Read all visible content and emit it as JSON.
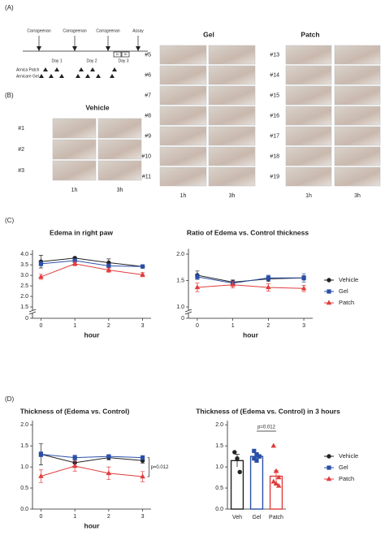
{
  "panels": {
    "a": "(A)",
    "b": "(B)",
    "c": "(C)",
    "d": "(D)"
  },
  "timeline": {
    "events": [
      "Carrageenan",
      "Carrageenan",
      "Carrageenan",
      "Assay"
    ],
    "days": [
      "Day 1",
      "Day 2",
      "Day 3"
    ],
    "hours": [
      "1h",
      "3h"
    ],
    "treatments": [
      "Arnica Patch",
      "Arnicare Gel"
    ]
  },
  "photos": {
    "groups": [
      {
        "title": "Vehicle",
        "labels": [
          "#1",
          "#2",
          "#3"
        ]
      },
      {
        "title": "Gel",
        "labels": [
          "#5",
          "#6",
          "#7",
          "#8",
          "#9",
          "#10",
          "#11"
        ]
      },
      {
        "title": "Patch",
        "labels": [
          "#13",
          "#14",
          "#15",
          "#16",
          "#17",
          "#18",
          "#19"
        ]
      }
    ],
    "times": [
      "1h",
      "3h"
    ]
  },
  "chart_data": [
    {
      "type": "line",
      "title": "Edema in right paw",
      "x": [
        0,
        1,
        2,
        3
      ],
      "xlabel": "hour",
      "xlim": [
        -0.25,
        3.25
      ],
      "xticks": [
        0,
        1,
        2,
        3
      ],
      "ylim": [
        1.5,
        4.2
      ],
      "yticks": [
        1.5,
        {
          "value": 2,
          "label": "2.0"
        },
        2.5,
        {
          "value": 3,
          "label": "3.0"
        },
        3.5,
        {
          "value": 4,
          "label": "4.0"
        }
      ],
      "axis_break_tick": 0,
      "series": [
        {
          "name": "Vehicle",
          "color": "#222222",
          "marker": "circle",
          "values": [
            3.65,
            3.82,
            3.6,
            3.42
          ],
          "errors": [
            0.3,
            0.06,
            0.18,
            0.05
          ]
        },
        {
          "name": "Gel",
          "color": "#2a4fa8",
          "marker": "square",
          "values": [
            3.55,
            3.7,
            3.45,
            3.42
          ],
          "errors": [
            0.1,
            0.08,
            0.1,
            0.05
          ]
        },
        {
          "name": "Patch",
          "color": "#e03c3c",
          "marker": "triangle",
          "values": [
            2.93,
            3.55,
            3.25,
            3.03
          ],
          "errors": [
            0.12,
            0.1,
            0.1,
            0.1
          ]
        }
      ]
    },
    {
      "type": "line",
      "title": "Ratio of Edema vs. Control thickness",
      "x": [
        0,
        1,
        2,
        3
      ],
      "xlabel": "hour",
      "xlim": [
        -0.25,
        3.25
      ],
      "xticks": [
        0,
        1,
        2,
        3
      ],
      "ylim": [
        1.0,
        2.1
      ],
      "yticks": [
        {
          "value": 1,
          "label": "1.0"
        },
        1.5,
        {
          "value": 2,
          "label": "2.0"
        }
      ],
      "axis_break_tick": 0,
      "legend": "right",
      "series": [
        {
          "name": "Vehicle",
          "color": "#222222",
          "marker": "circle",
          "values": [
            1.6,
            1.47,
            1.53,
            1.55
          ],
          "errors": [
            0.08,
            0.04,
            0.05,
            0.04
          ]
        },
        {
          "name": "Gel",
          "color": "#2a4fa8",
          "marker": "square",
          "values": [
            1.57,
            1.45,
            1.55,
            1.55
          ],
          "errors": [
            0.05,
            0.04,
            0.05,
            0.08
          ]
        },
        {
          "name": "Patch",
          "color": "#e03c3c",
          "marker": "triangle",
          "values": [
            1.37,
            1.42,
            1.37,
            1.35
          ],
          "errors": [
            0.08,
            0.06,
            0.07,
            0.06
          ]
        }
      ]
    },
    {
      "type": "line",
      "title": "Thickness of (Edema vs. Control)",
      "x": [
        0,
        1,
        2,
        3
      ],
      "xlabel": "hour",
      "xlim": [
        -0.25,
        3.25
      ],
      "xticks": [
        0,
        1,
        2,
        3
      ],
      "ylim": [
        0,
        2.1
      ],
      "yticks": [
        {
          "value": 0,
          "label": "0.0"
        },
        0.5,
        {
          "value": 1,
          "label": "1.0"
        },
        1.5,
        {
          "value": 2,
          "label": "2.0"
        }
      ],
      "annotation": "p=0.012",
      "series": [
        {
          "name": "Vehicle",
          "color": "#222222",
          "marker": "circle",
          "values": [
            1.3,
            1.1,
            1.22,
            1.15
          ],
          "errors": [
            0.25,
            0.08,
            0.05,
            0.06
          ]
        },
        {
          "name": "Gel",
          "color": "#2a4fa8",
          "marker": "square",
          "values": [
            1.3,
            1.22,
            1.25,
            1.22
          ],
          "errors": [
            0.06,
            0.06,
            0.04,
            0.05
          ]
        },
        {
          "name": "Patch",
          "color": "#e03c3c",
          "marker": "triangle",
          "values": [
            0.78,
            1.02,
            0.85,
            0.77
          ],
          "errors": [
            0.15,
            0.12,
            0.15,
            0.12
          ]
        }
      ]
    },
    {
      "type": "bar",
      "title": "Thickness of (Edema vs. Control) in 3 hours",
      "categories": [
        "Veh",
        "Gel",
        "Patch"
      ],
      "ylim": [
        0,
        2.1
      ],
      "yticks": [
        {
          "value": 0,
          "label": "0.0"
        },
        0.5,
        {
          "value": 1,
          "label": "1.0"
        },
        1.5,
        {
          "value": 2,
          "label": "2.0"
        }
      ],
      "annotation": "p=0.012",
      "legend": "right",
      "series": [
        {
          "name": "Vehicle",
          "color": "#222222",
          "marker": "circle"
        },
        {
          "name": "Gel",
          "color": "#2a4fa8",
          "marker": "square"
        },
        {
          "name": "Patch",
          "color": "#e03c3c",
          "marker": "triangle"
        }
      ],
      "values": [
        1.15,
        1.25,
        0.78
      ],
      "errors": [
        0.15,
        0.06,
        0.13
      ],
      "points": [
        [
          1.35,
          1.2,
          0.88
        ],
        [
          1.38,
          1.3,
          1.25,
          1.2,
          1.15,
          1.25
        ],
        [
          1.5,
          0.9,
          0.75,
          0.65,
          0.6,
          0.55
        ]
      ]
    }
  ]
}
